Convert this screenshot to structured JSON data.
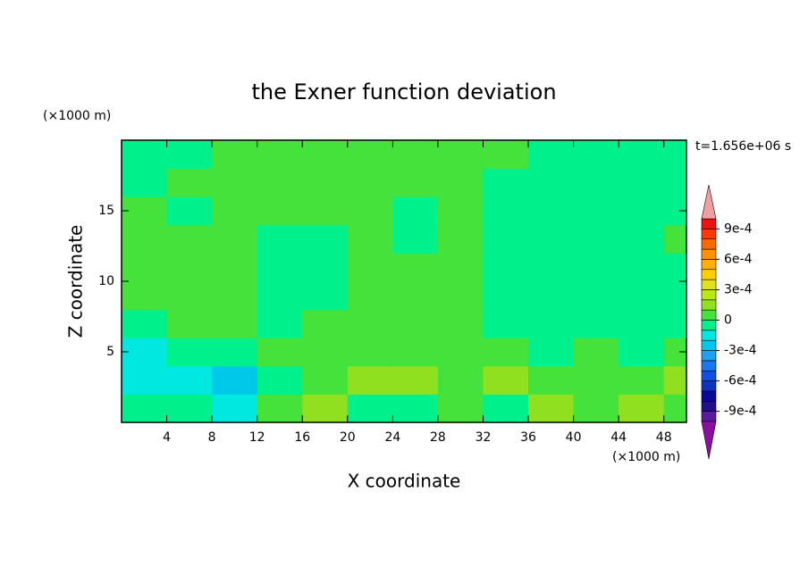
{
  "chart_data": {
    "type": "contour",
    "title": "the Exner function deviation",
    "xlabel": "X coordinate",
    "ylabel": "Z coordinate",
    "x_unit": "(×1000 m)",
    "y_unit": "(×1000 m)",
    "annotation": "t=1.656e+06 s",
    "xlim": [
      0,
      50
    ],
    "ylim": [
      0,
      20
    ],
    "xticks": [
      4,
      8,
      12,
      16,
      20,
      24,
      28,
      32,
      36,
      40,
      44,
      48
    ],
    "yticks": [
      5,
      10,
      15
    ],
    "x": [
      2,
      6,
      10,
      14,
      18,
      22,
      26,
      30,
      34,
      38,
      42,
      46,
      50
    ],
    "y": [
      1,
      3,
      5,
      7,
      9,
      11,
      13,
      15,
      17,
      19
    ],
    "z": [
      [
        -5e-05,
        -5e-05,
        -0.00015,
        5e-05,
        0.00015,
        -5e-05,
        -5e-05,
        5e-05,
        -5e-05,
        0.00015,
        5e-05,
        0.00015,
        5e-05
      ],
      [
        -0.00015,
        -0.00015,
        -0.00025,
        -5e-05,
        5e-05,
        0.00015,
        0.00015,
        5e-05,
        0.00015,
        5e-05,
        5e-05,
        5e-05,
        0.00015
      ],
      [
        -0.00015,
        -5e-05,
        -5e-05,
        5e-05,
        5e-05,
        5e-05,
        5e-05,
        5e-05,
        5e-05,
        -5e-05,
        5e-05,
        -5e-05,
        5e-05
      ],
      [
        -5e-05,
        5e-05,
        5e-05,
        -5e-05,
        5e-05,
        5e-05,
        5e-05,
        5e-05,
        -5e-05,
        -5e-05,
        -5e-05,
        -5e-05,
        -5e-05
      ],
      [
        5e-05,
        5e-05,
        5e-05,
        -5e-05,
        -5e-05,
        5e-05,
        5e-05,
        5e-05,
        -5e-05,
        -5e-05,
        -5e-05,
        -5e-05,
        -5e-05
      ],
      [
        5e-05,
        5e-05,
        5e-05,
        -5e-05,
        -5e-05,
        5e-05,
        5e-05,
        5e-05,
        -5e-05,
        -5e-05,
        -5e-05,
        -5e-05,
        -5e-05
      ],
      [
        5e-05,
        5e-05,
        5e-05,
        -5e-05,
        -5e-05,
        5e-05,
        -5e-05,
        5e-05,
        -5e-05,
        -5e-05,
        -5e-05,
        -5e-05,
        5e-05
      ],
      [
        5e-05,
        -5e-05,
        5e-05,
        5e-05,
        5e-05,
        5e-05,
        -5e-05,
        5e-05,
        -5e-05,
        -5e-05,
        -5e-05,
        -5e-05,
        -5e-05
      ],
      [
        -5e-05,
        5e-05,
        5e-05,
        5e-05,
        5e-05,
        5e-05,
        5e-05,
        5e-05,
        -5e-05,
        -5e-05,
        -5e-05,
        -5e-05,
        -5e-05
      ],
      [
        -5e-05,
        -5e-05,
        5e-05,
        5e-05,
        5e-05,
        5e-05,
        5e-05,
        5e-05,
        5e-05,
        -5e-05,
        -5e-05,
        -5e-05,
        -5e-05
      ]
    ],
    "levels": [
      -0.001,
      -0.0009,
      -0.0008,
      -0.0007,
      -0.0006,
      -0.0005,
      -0.0004,
      -0.0003,
      -0.0002,
      -0.0001,
      0,
      0.0001,
      0.0002,
      0.0003,
      0.0004,
      0.0005,
      0.0006,
      0.0007,
      0.0008,
      0.0009,
      0.001
    ],
    "colors": [
      "#5a1aa0",
      "#22108a",
      "#0a0a9a",
      "#1030c0",
      "#1050e0",
      "#1a78f0",
      "#20a0f0",
      "#00c8e8",
      "#00e8e0",
      "#00f08c",
      "#44e23a",
      "#90e020",
      "#b8e818",
      "#e0e020",
      "#ffd000",
      "#ffb000",
      "#ff9000",
      "#ff6800",
      "#ff3800",
      "#f01010"
    ],
    "extend_colors": [
      "#8a10a0",
      "#f0a0a0"
    ],
    "colorbar_ticks": [
      {
        "value": 0.0009,
        "label": "9e-4"
      },
      {
        "value": 0.0006,
        "label": "6e-4"
      },
      {
        "value": 0.0003,
        "label": "3e-4"
      },
      {
        "value": 0,
        "label": "0"
      },
      {
        "value": -0.0003,
        "label": "-3e-4"
      },
      {
        "value": -0.0006,
        "label": "-6e-4"
      },
      {
        "value": -0.0009,
        "label": "-9e-4"
      }
    ]
  }
}
